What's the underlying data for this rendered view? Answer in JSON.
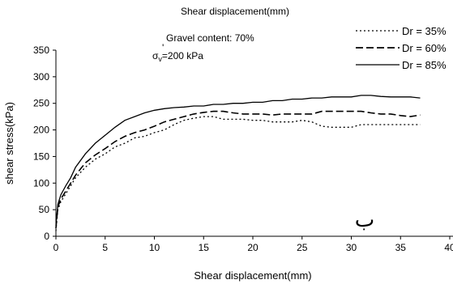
{
  "chart_data": {
    "type": "line",
    "title": "Shear displacement(mm)",
    "xlabel": "Shear displacement(mm)",
    "ylabel": "shear stress(kPa)",
    "xlim": [
      0,
      40
    ],
    "ylim": [
      0,
      350
    ],
    "xticks": [
      "0",
      "5",
      "10",
      "15",
      "20",
      "25",
      "30",
      "35",
      "40"
    ],
    "yticks": [
      "0",
      "50",
      "100",
      "150",
      "200",
      "250",
      "300",
      "350"
    ],
    "grid": false,
    "legend_position": "top-right",
    "annotations": {
      "gravel": "Gravel content: 70%",
      "sigma_symbol": "σ",
      "sigma_prime": "'",
      "sigma_sub": "v",
      "sigma_value": "=200 kPa",
      "panel_mark": "ب"
    },
    "series": [
      {
        "name": "Dr = 35%",
        "style": "dotted",
        "x": [
          0,
          0.2,
          0.5,
          1,
          1.5,
          2,
          3,
          4,
          5,
          6,
          7,
          8,
          9,
          10,
          11,
          12,
          13,
          14,
          15,
          16,
          17,
          18,
          19,
          20,
          21,
          22,
          23,
          24,
          25,
          26,
          27,
          28,
          29,
          30,
          31,
          32,
          33,
          34,
          35,
          36,
          37
        ],
        "y": [
          10,
          50,
          65,
          80,
          95,
          110,
          130,
          145,
          155,
          168,
          175,
          185,
          188,
          195,
          200,
          210,
          218,
          222,
          225,
          225,
          220,
          220,
          220,
          218,
          218,
          215,
          215,
          215,
          218,
          215,
          207,
          205,
          205,
          205,
          210,
          210,
          210,
          210,
          210,
          210,
          210
        ]
      },
      {
        "name": "Dr = 60%",
        "style": "dashed",
        "x": [
          0,
          0.2,
          0.5,
          1,
          1.5,
          2,
          3,
          4,
          5,
          6,
          7,
          8,
          9,
          10,
          11,
          12,
          13,
          14,
          15,
          16,
          17,
          18,
          19,
          20,
          21,
          22,
          23,
          24,
          25,
          26,
          27,
          28,
          29,
          30,
          31,
          32,
          33,
          34,
          35,
          36,
          37
        ],
        "y": [
          15,
          55,
          70,
          85,
          100,
          115,
          138,
          153,
          165,
          178,
          188,
          195,
          200,
          207,
          215,
          220,
          225,
          230,
          233,
          235,
          235,
          232,
          230,
          230,
          230,
          228,
          230,
          230,
          230,
          230,
          235,
          235,
          235,
          235,
          235,
          232,
          230,
          230,
          227,
          225,
          228
        ]
      },
      {
        "name": "Dr = 85%",
        "style": "solid",
        "x": [
          0,
          0.2,
          0.5,
          1,
          1.5,
          2,
          3,
          4,
          5,
          6,
          7,
          8,
          9,
          10,
          11,
          12,
          13,
          14,
          15,
          16,
          17,
          18,
          19,
          20,
          21,
          22,
          23,
          24,
          25,
          26,
          27,
          28,
          29,
          30,
          31,
          32,
          33,
          34,
          35,
          36,
          37
        ],
        "y": [
          20,
          60,
          78,
          95,
          110,
          130,
          155,
          175,
          190,
          205,
          218,
          225,
          232,
          237,
          240,
          242,
          243,
          245,
          245,
          248,
          248,
          250,
          250,
          252,
          252,
          255,
          255,
          258,
          258,
          260,
          260,
          262,
          262,
          262,
          265,
          265,
          263,
          262,
          262,
          262,
          260
        ]
      }
    ]
  }
}
